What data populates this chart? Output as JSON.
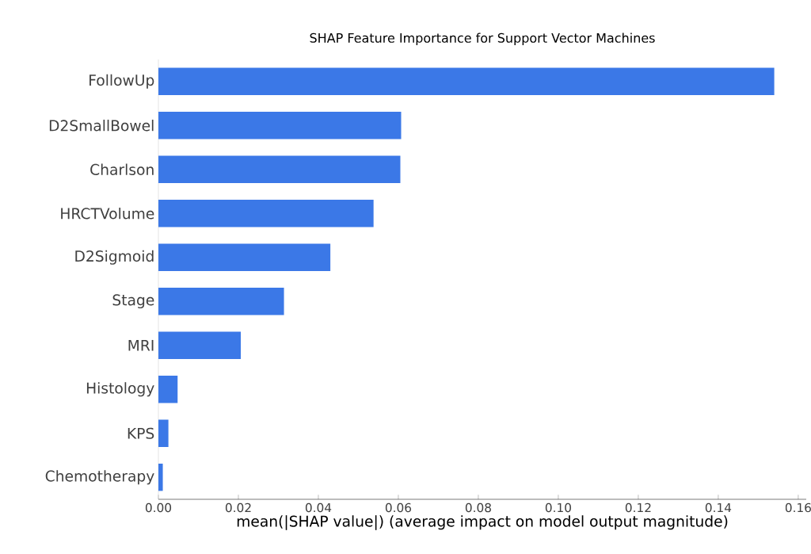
{
  "chart_data": {
    "type": "bar",
    "orientation": "horizontal",
    "title": "SHAP Feature Importance for Support Vector Machines",
    "xlabel": "mean(|SHAP value|) (average impact on model output magnitude)",
    "categories": [
      "FollowUp",
      "D2SmallBowel",
      "Charlson",
      "HRCTVolume",
      "D2Sigmoid",
      "Stage",
      "MRI",
      "Histology",
      "KPS",
      "Chemotherapy"
    ],
    "values": [
      0.154,
      0.0607,
      0.0605,
      0.0538,
      0.043,
      0.0314,
      0.0206,
      0.0048,
      0.0025,
      0.0011
    ],
    "color": "#3b78e7",
    "xlim": [
      0,
      0.162
    ],
    "xticks": [
      {
        "value": 0,
        "label": "0.00"
      },
      {
        "value": 0.02,
        "label": "0.02"
      },
      {
        "value": 0.04,
        "label": "0.04"
      },
      {
        "value": 0.06,
        "label": "0.06"
      },
      {
        "value": 0.08,
        "label": "0.08"
      },
      {
        "value": 0.1,
        "label": "0.10"
      },
      {
        "value": 0.12,
        "label": "0.12"
      },
      {
        "value": 0.14,
        "label": "0.14"
      },
      {
        "value": 0.16,
        "label": "0.16"
      }
    ]
  }
}
